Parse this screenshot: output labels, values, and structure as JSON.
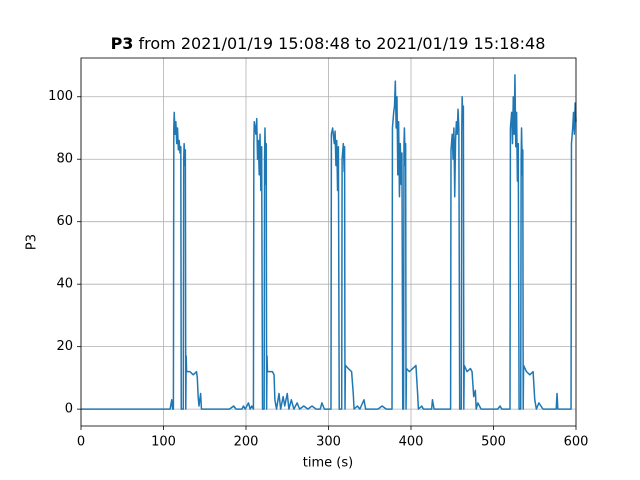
{
  "chart_data": {
    "type": "line",
    "title_bold": "P3",
    "title": "from 2021/01/19 15:08:48 to 2021/01/19 15:18:48",
    "x_label": "time (s)",
    "y_label": "P3",
    "color": "#1f77b4",
    "grid": true,
    "xlim": [
      0,
      600
    ],
    "xticks": [
      0,
      100,
      200,
      300,
      400,
      500,
      600
    ],
    "ylim": [
      -5.4,
      112.4
    ],
    "yticks": [
      0,
      20,
      40,
      60,
      80,
      100
    ],
    "x": [
      0,
      108,
      110,
      111,
      112,
      112.5,
      113,
      114,
      115,
      116,
      117,
      118,
      119,
      120,
      121,
      121.5,
      124,
      124.5,
      125,
      126,
      126.5,
      127,
      127.5,
      128,
      132,
      136,
      140,
      141,
      142,
      143,
      145,
      146,
      150,
      180,
      185,
      188,
      195,
      197,
      199,
      203,
      205,
      207,
      209,
      209.5,
      210,
      212,
      213,
      214,
      215,
      216,
      217,
      218,
      219,
      220,
      222,
      222.5,
      223,
      224,
      224.5,
      225,
      225.5,
      226,
      232,
      234,
      235,
      237,
      240,
      242,
      245,
      247,
      250,
      252,
      255,
      258,
      262,
      265,
      270,
      275,
      280,
      285,
      290,
      292,
      295,
      300,
      303,
      303.5,
      305,
      307,
      308,
      309,
      310,
      311,
      312,
      313,
      316,
      316.5,
      318,
      319,
      319.5,
      320,
      320.5,
      324,
      328,
      330,
      331,
      335,
      338,
      343,
      345,
      360,
      365,
      370,
      377,
      377.5,
      379,
      380,
      381,
      382,
      383,
      384,
      385,
      386,
      387,
      388,
      389,
      390,
      391,
      391.5,
      392,
      393,
      393.5,
      394,
      394.5,
      398,
      402,
      406,
      408,
      409,
      413,
      415,
      420,
      425,
      426,
      428,
      440,
      448,
      448.5,
      450,
      451,
      452,
      453,
      454,
      455,
      456,
      457,
      458,
      459,
      461,
      461.5,
      462,
      463,
      463.5,
      464,
      464.5,
      468,
      472,
      474,
      476,
      478,
      479,
      481,
      485,
      490,
      500,
      505,
      508,
      510,
      515,
      520,
      520.5,
      522,
      523,
      524,
      525,
      526,
      527,
      528,
      529,
      530,
      531,
      533,
      533.5,
      534,
      535,
      535.5,
      536,
      536.5,
      540,
      544,
      548,
      550,
      552,
      555,
      560,
      570,
      576,
      577,
      578,
      580,
      594,
      594.5,
      596,
      597,
      598,
      599,
      600
    ],
    "values": [
      0,
      0,
      3,
      0,
      0,
      90,
      95,
      88,
      92,
      85,
      90,
      83,
      86,
      82,
      84,
      0,
      0,
      80,
      85,
      78,
      83,
      0,
      17,
      12,
      12,
      11,
      12,
      10,
      4,
      1,
      5,
      0,
      0,
      0,
      1,
      0,
      0,
      1,
      0,
      2,
      0,
      1,
      0,
      85,
      92,
      88,
      93,
      80,
      86,
      75,
      88,
      70,
      84,
      0,
      0,
      80,
      90,
      72,
      85,
      0,
      17,
      12,
      12,
      11,
      3,
      0,
      5,
      0,
      4,
      1,
      5,
      0,
      3,
      0,
      2,
      0,
      1,
      0,
      1,
      0,
      0,
      2,
      0,
      0,
      0,
      88,
      90,
      85,
      89,
      78,
      86,
      70,
      84,
      0,
      0,
      80,
      85,
      76,
      84,
      0,
      14,
      13,
      12,
      5,
      0,
      1,
      0,
      3,
      0,
      0,
      1,
      0,
      0,
      90,
      95,
      97,
      105,
      90,
      100,
      75,
      92,
      68,
      85,
      72,
      82,
      0,
      0,
      85,
      90,
      78,
      85,
      0,
      13,
      12,
      13,
      14,
      5,
      0,
      1,
      0,
      0,
      0,
      3,
      0,
      0,
      0,
      83,
      88,
      80,
      90,
      68,
      86,
      92,
      88,
      96,
      90,
      0,
      0,
      88,
      100,
      92,
      97,
      0,
      14,
      12,
      13,
      12,
      4,
      6,
      0,
      2,
      0,
      0,
      0,
      0,
      1,
      0,
      0,
      0,
      90,
      95,
      85,
      100,
      88,
      107,
      84,
      95,
      73,
      85,
      0,
      0,
      80,
      90,
      75,
      83,
      0,
      14,
      12,
      11,
      12,
      3,
      0,
      2,
      0,
      0,
      0,
      5,
      0,
      0,
      0,
      85,
      90,
      95,
      88,
      98,
      92
    ]
  }
}
